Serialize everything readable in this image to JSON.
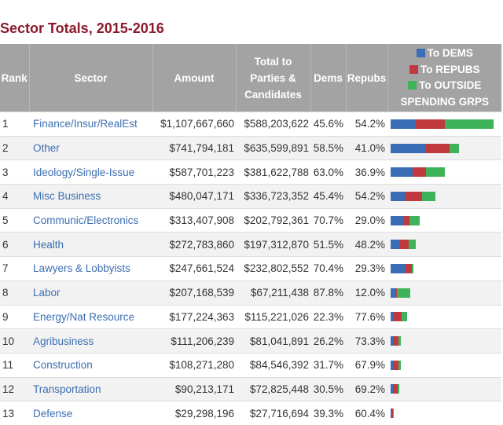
{
  "title": "Sector Totals, 2015-2016",
  "headers": {
    "rank": "Rank",
    "sector": "Sector",
    "amount": "Amount",
    "total_line1": "Total to",
    "total_line2": "Parties &",
    "total_line3": "Candidates",
    "dems": "Dems",
    "repubs": "Repubs"
  },
  "legend": {
    "dems": "To DEMS",
    "repubs": "To REPUBS",
    "outside_line1": "To OUTSIDE",
    "outside_line2": "SPENDING GRPS"
  },
  "colors": {
    "dems": "#3a6db5",
    "repubs": "#c0393e",
    "outside": "#3fb35a",
    "header_bg": "#a3a3a3",
    "title": "#8b1a2b",
    "link": "#3b6eb1"
  },
  "chart_data": {
    "type": "table",
    "columns": [
      "Rank",
      "Sector",
      "Amount",
      "Total to Parties & Candidates",
      "Dems",
      "Repubs"
    ],
    "series": [
      {
        "name": "To DEMS"
      },
      {
        "name": "To REPUBS"
      },
      {
        "name": "To OUTSIDE SPENDING GRPS"
      }
    ],
    "rows": [
      {
        "rank": "1",
        "sector": "Finance/Insur/RealEst",
        "amount": "$1,107,667,660",
        "total": "$588,203,622",
        "dems": "45.6%",
        "repubs": "54.2%",
        "amount_value": 1107667660,
        "total_value": 588203622,
        "dems_value": 45.6,
        "repubs_value": 54.2
      },
      {
        "rank": "2",
        "sector": "Other",
        "amount": "$741,794,181",
        "total": "$635,599,891",
        "dems": "58.5%",
        "repubs": "41.0%",
        "amount_value": 741794181,
        "total_value": 635599891,
        "dems_value": 58.5,
        "repubs_value": 41.0
      },
      {
        "rank": "3",
        "sector": "Ideology/Single-Issue",
        "amount": "$587,701,223",
        "total": "$381,622,788",
        "dems": "63.0%",
        "repubs": "36.9%",
        "amount_value": 587701223,
        "total_value": 381622788,
        "dems_value": 63.0,
        "repubs_value": 36.9
      },
      {
        "rank": "4",
        "sector": "Misc Business",
        "amount": "$480,047,171",
        "total": "$336,723,352",
        "dems": "45.4%",
        "repubs": "54.2%",
        "amount_value": 480047171,
        "total_value": 336723352,
        "dems_value": 45.4,
        "repubs_value": 54.2
      },
      {
        "rank": "5",
        "sector": "Communic/Electronics",
        "amount": "$313,407,908",
        "total": "$202,792,361",
        "dems": "70.7%",
        "repubs": "29.0%",
        "amount_value": 313407908,
        "total_value": 202792361,
        "dems_value": 70.7,
        "repubs_value": 29.0
      },
      {
        "rank": "6",
        "sector": "Health",
        "amount": "$272,783,860",
        "total": "$197,312,870",
        "dems": "51.5%",
        "repubs": "48.2%",
        "amount_value": 272783860,
        "total_value": 197312870,
        "dems_value": 51.5,
        "repubs_value": 48.2
      },
      {
        "rank": "7",
        "sector": "Lawyers & Lobbyists",
        "amount": "$247,661,524",
        "total": "$232,802,552",
        "dems": "70.4%",
        "repubs": "29.3%",
        "amount_value": 247661524,
        "total_value": 232802552,
        "dems_value": 70.4,
        "repubs_value": 29.3
      },
      {
        "rank": "8",
        "sector": "Labor",
        "amount": "$207,168,539",
        "total": "$67,211,438",
        "dems": "87.8%",
        "repubs": "12.0%",
        "amount_value": 207168539,
        "total_value": 67211438,
        "dems_value": 87.8,
        "repubs_value": 12.0
      },
      {
        "rank": "9",
        "sector": "Energy/Nat Resource",
        "amount": "$177,224,363",
        "total": "$115,221,026",
        "dems": "22.3%",
        "repubs": "77.6%",
        "amount_value": 177224363,
        "total_value": 115221026,
        "dems_value": 22.3,
        "repubs_value": 77.6
      },
      {
        "rank": "10",
        "sector": "Agribusiness",
        "amount": "$111,206,239",
        "total": "$81,041,891",
        "dems": "26.2%",
        "repubs": "73.3%",
        "amount_value": 111206239,
        "total_value": 81041891,
        "dems_value": 26.2,
        "repubs_value": 73.3
      },
      {
        "rank": "11",
        "sector": "Construction",
        "amount": "$108,271,280",
        "total": "$84,546,392",
        "dems": "31.7%",
        "repubs": "67.9%",
        "amount_value": 108271280,
        "total_value": 84546392,
        "dems_value": 31.7,
        "repubs_value": 67.9
      },
      {
        "rank": "12",
        "sector": "Transportation",
        "amount": "$90,213,171",
        "total": "$72,825,448",
        "dems": "30.5%",
        "repubs": "69.2%",
        "amount_value": 90213171,
        "total_value": 72825448,
        "dems_value": 30.5,
        "repubs_value": 69.2
      },
      {
        "rank": "13",
        "sector": "Defense",
        "amount": "$29,298,196",
        "total": "$27,716,694",
        "dems": "39.3%",
        "repubs": "60.4%",
        "amount_value": 29298196,
        "total_value": 27716694,
        "dems_value": 39.3,
        "repubs_value": 60.4
      }
    ]
  }
}
